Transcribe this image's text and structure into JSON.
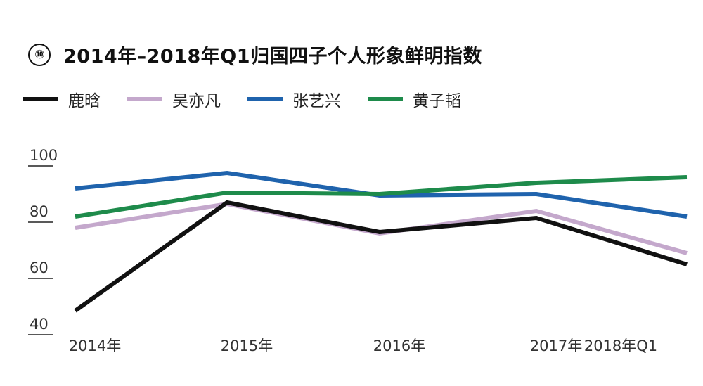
{
  "header": {
    "badge": "⑩",
    "title": "2014年–2018年Q1归国四子个人形象鲜明指数"
  },
  "chart_data": {
    "type": "line",
    "title": "2014年–2018年Q1归国四子个人形象鲜明指数",
    "categories": [
      "2014年",
      "2015年",
      "2016年",
      "2017年",
      "2018年Q1"
    ],
    "y_ticks": [
      "100",
      "80",
      "60",
      "40"
    ],
    "ylim": [
      40,
      100
    ],
    "legend_position": "top-left",
    "series": [
      {
        "name": "鹿晗",
        "color": "#111111",
        "values": [
          48.5,
          87,
          76.5,
          81.5,
          65
        ]
      },
      {
        "name": "吴亦凡",
        "color": "#c4a8cc",
        "values": [
          78,
          86.5,
          76,
          84,
          69
        ]
      },
      {
        "name": "张艺兴",
        "color": "#1f63ad",
        "values": [
          92,
          97.5,
          89.5,
          90,
          82
        ]
      },
      {
        "name": "黄子韬",
        "color": "#1e8b4b",
        "values": [
          82,
          90.5,
          90,
          94,
          96
        ]
      }
    ]
  }
}
